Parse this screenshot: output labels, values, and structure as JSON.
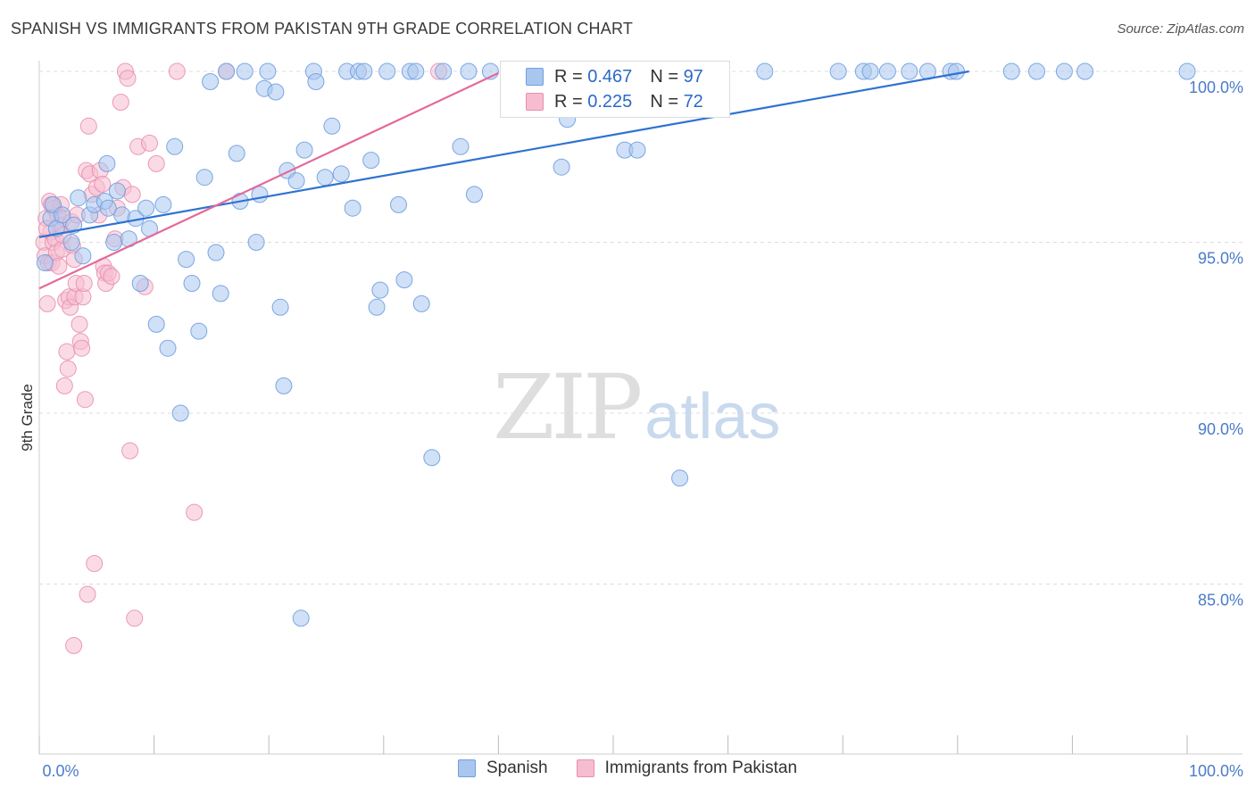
{
  "header": {
    "title": "SPANISH VS IMMIGRANTS FROM PAKISTAN 9TH GRADE CORRELATION CHART",
    "source": "Source: ZipAtlas.com"
  },
  "watermark": {
    "zip": "ZIP",
    "atlas": "atlas"
  },
  "legend": {
    "r_label": "R =",
    "n_label": "N =",
    "items": [
      {
        "name": "Spanish",
        "r": "0.467",
        "n": "97",
        "fill": "#a9c6ef",
        "stroke": "#6f9fe0"
      },
      {
        "name": "Immigrants from Pakistan",
        "r": "0.225",
        "n": "72",
        "fill": "#f6bdd0",
        "stroke": "#e98fb0"
      }
    ]
  },
  "colors": {
    "blue_point_fill": "#a9c6ef",
    "blue_point_stroke": "#6f9fe0",
    "blue_line": "#2f72d1",
    "pink_point_fill": "#f6bdd0",
    "pink_point_stroke": "#e98fb0",
    "pink_line": "#e4699a",
    "tick_label": "#4a7cc7",
    "grid": "#dcdcdc"
  },
  "chart_data": {
    "type": "scatter",
    "title": "SPANISH VS IMMIGRANTS FROM PAKISTAN 9TH GRADE CORRELATION CHART",
    "xlabel": "",
    "ylabel": "9th Grade",
    "xlim": [
      0,
      100
    ],
    "ylim": [
      80.0,
      100.4
    ],
    "x_tick_labels": [
      {
        "value": 0,
        "label": "0.0%"
      },
      {
        "value": 100,
        "label": "100.0%"
      }
    ],
    "x_minor_ticks": [
      0,
      10,
      20,
      30,
      40,
      50,
      60,
      70,
      80,
      90,
      100
    ],
    "y_ticks": [
      {
        "value": 85,
        "label": "85.0%"
      },
      {
        "value": 90,
        "label": "90.0%"
      },
      {
        "value": 95,
        "label": "95.0%"
      },
      {
        "value": 100,
        "label": "100.0%"
      }
    ],
    "grid": true,
    "legend_position": "top-center",
    "series": [
      {
        "name": "Spanish",
        "r": 0.467,
        "n": 97,
        "trend": {
          "x": [
            0,
            81
          ],
          "y": [
            95.15,
            100.0
          ]
        },
        "points": [
          [
            0.5,
            94.4
          ],
          [
            1.0,
            95.7
          ],
          [
            1.2,
            96.1
          ],
          [
            1.5,
            95.4
          ],
          [
            2.0,
            95.8
          ],
          [
            2.8,
            95.0
          ],
          [
            3.4,
            96.3
          ],
          [
            3.8,
            94.6
          ],
          [
            4.4,
            95.8
          ],
          [
            4.8,
            96.1
          ],
          [
            5.7,
            96.2
          ],
          [
            5.9,
            97.3
          ],
          [
            6.5,
            95.0
          ],
          [
            6.8,
            96.5
          ],
          [
            7.2,
            95.8
          ],
          [
            7.8,
            95.1
          ],
          [
            8.4,
            95.7
          ],
          [
            8.8,
            93.8
          ],
          [
            9.3,
            96.0
          ],
          [
            9.6,
            95.4
          ],
          [
            10.2,
            92.6
          ],
          [
            10.8,
            96.1
          ],
          [
            11.2,
            91.9
          ],
          [
            11.8,
            97.8
          ],
          [
            12.3,
            90.0
          ],
          [
            12.8,
            94.5
          ],
          [
            13.3,
            93.8
          ],
          [
            13.9,
            92.4
          ],
          [
            14.4,
            96.9
          ],
          [
            14.9,
            99.7
          ],
          [
            15.4,
            94.7
          ],
          [
            15.8,
            93.5
          ],
          [
            16.3,
            100.0
          ],
          [
            17.2,
            97.6
          ],
          [
            17.5,
            96.2
          ],
          [
            17.9,
            100.0
          ],
          [
            18.9,
            95.0
          ],
          [
            19.2,
            96.4
          ],
          [
            19.6,
            99.5
          ],
          [
            19.9,
            100.0
          ],
          [
            20.6,
            99.4
          ],
          [
            21.0,
            93.1
          ],
          [
            21.3,
            90.8
          ],
          [
            21.6,
            97.1
          ],
          [
            22.4,
            96.8
          ],
          [
            22.8,
            84.0
          ],
          [
            23.1,
            97.7
          ],
          [
            23.9,
            100.0
          ],
          [
            24.1,
            99.7
          ],
          [
            24.9,
            96.9
          ],
          [
            25.5,
            98.4
          ],
          [
            26.3,
            97.0
          ],
          [
            26.8,
            100.0
          ],
          [
            27.3,
            96.0
          ],
          [
            27.8,
            100.0
          ],
          [
            28.3,
            100.0
          ],
          [
            28.9,
            97.4
          ],
          [
            29.4,
            93.1
          ],
          [
            29.7,
            93.6
          ],
          [
            30.3,
            100.0
          ],
          [
            31.3,
            96.1
          ],
          [
            31.8,
            93.9
          ],
          [
            32.3,
            100.0
          ],
          [
            32.8,
            100.0
          ],
          [
            33.3,
            93.2
          ],
          [
            34.2,
            88.7
          ],
          [
            35.2,
            100.0
          ],
          [
            36.7,
            97.8
          ],
          [
            37.4,
            100.0
          ],
          [
            37.9,
            96.4
          ],
          [
            39.3,
            100.0
          ],
          [
            41.5,
            100.0
          ],
          [
            44.0,
            99.5
          ],
          [
            45.5,
            97.2
          ],
          [
            46.0,
            98.6
          ],
          [
            47.0,
            100.0
          ],
          [
            48.0,
            100.0
          ],
          [
            49.4,
            100.0
          ],
          [
            51.0,
            97.7
          ],
          [
            52.1,
            97.7
          ],
          [
            55.8,
            88.1
          ],
          [
            63.2,
            100.0
          ],
          [
            69.6,
            100.0
          ],
          [
            71.8,
            100.0
          ],
          [
            72.4,
            100.0
          ],
          [
            73.9,
            100.0
          ],
          [
            75.8,
            100.0
          ],
          [
            77.4,
            100.0
          ],
          [
            79.4,
            100.0
          ],
          [
            79.9,
            100.0
          ],
          [
            84.7,
            100.0
          ],
          [
            86.9,
            100.0
          ],
          [
            89.3,
            100.0
          ],
          [
            91.1,
            100.0
          ],
          [
            100.0,
            100.0
          ],
          [
            3.0,
            95.5
          ],
          [
            6.0,
            96.0
          ]
        ]
      },
      {
        "name": "Immigrants from Pakistan",
        "r": 0.225,
        "n": 72,
        "trend": {
          "x": [
            0,
            40
          ],
          "y": [
            93.65,
            99.95
          ]
        },
        "points": [
          [
            0.4,
            95.0
          ],
          [
            0.5,
            94.6
          ],
          [
            0.6,
            95.7
          ],
          [
            0.7,
            93.2
          ],
          [
            0.8,
            94.4
          ],
          [
            0.9,
            96.2
          ],
          [
            1.0,
            95.3
          ],
          [
            1.1,
            94.4
          ],
          [
            1.2,
            95.0
          ],
          [
            1.3,
            96.0
          ],
          [
            1.4,
            95.1
          ],
          [
            1.5,
            94.7
          ],
          [
            1.6,
            95.8
          ],
          [
            1.7,
            94.3
          ],
          [
            1.8,
            95.5
          ],
          [
            1.9,
            96.1
          ],
          [
            2.0,
            94.8
          ],
          [
            2.1,
            95.7
          ],
          [
            2.2,
            90.8
          ],
          [
            2.3,
            93.3
          ],
          [
            2.4,
            91.8
          ],
          [
            2.5,
            91.3
          ],
          [
            2.6,
            93.4
          ],
          [
            2.7,
            93.1
          ],
          [
            2.8,
            95.6
          ],
          [
            2.9,
            94.9
          ],
          [
            3.0,
            83.2
          ],
          [
            3.1,
            93.4
          ],
          [
            3.2,
            93.8
          ],
          [
            3.3,
            95.8
          ],
          [
            3.5,
            92.6
          ],
          [
            3.6,
            92.1
          ],
          [
            3.7,
            91.9
          ],
          [
            3.8,
            93.4
          ],
          [
            3.9,
            93.8
          ],
          [
            4.0,
            90.4
          ],
          [
            4.1,
            97.1
          ],
          [
            4.2,
            84.7
          ],
          [
            4.3,
            98.4
          ],
          [
            4.4,
            97.0
          ],
          [
            4.6,
            96.4
          ],
          [
            4.8,
            85.6
          ],
          [
            5.0,
            96.6
          ],
          [
            5.2,
            95.8
          ],
          [
            5.3,
            97.1
          ],
          [
            5.5,
            96.7
          ],
          [
            5.6,
            94.3
          ],
          [
            5.7,
            94.1
          ],
          [
            5.8,
            93.8
          ],
          [
            6.0,
            94.1
          ],
          [
            6.3,
            94.0
          ],
          [
            6.6,
            95.1
          ],
          [
            6.8,
            96.0
          ],
          [
            7.1,
            99.1
          ],
          [
            7.3,
            96.6
          ],
          [
            7.5,
            100.0
          ],
          [
            7.7,
            99.8
          ],
          [
            7.9,
            88.9
          ],
          [
            8.1,
            96.4
          ],
          [
            8.3,
            84.0
          ],
          [
            8.6,
            97.8
          ],
          [
            9.2,
            93.7
          ],
          [
            9.6,
            97.9
          ],
          [
            10.2,
            97.3
          ],
          [
            12.0,
            100.0
          ],
          [
            13.5,
            87.1
          ],
          [
            16.3,
            100.0
          ],
          [
            34.8,
            100.0
          ],
          [
            1.05,
            96.1
          ],
          [
            2.05,
            95.2
          ],
          [
            3.05,
            94.5
          ],
          [
            0.65,
            95.4
          ]
        ]
      }
    ]
  }
}
